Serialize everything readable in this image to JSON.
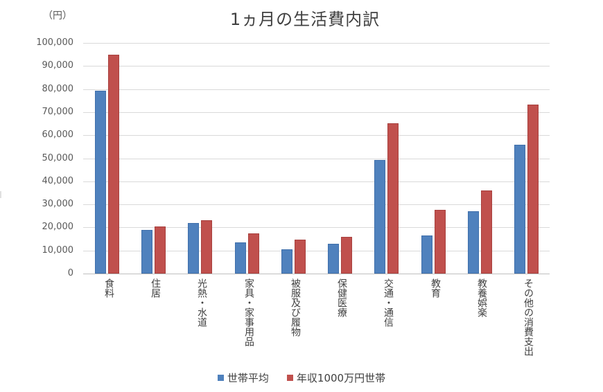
{
  "chart": {
    "title": "1ヵ月の生活費内訳",
    "unit_label": "（円）"
  },
  "colors": {
    "series_0": "#4f81bd",
    "series_1": "#c0504d",
    "gridline": "#d9d9d9"
  },
  "legend": {
    "items": [
      {
        "label": "世帯平均",
        "color": "#4f81bd"
      },
      {
        "label": "年収1000万円世帯",
        "color": "#c0504d"
      }
    ]
  },
  "y_ticks": [
    "0",
    "10,000",
    "20,000",
    "30,000",
    "40,000",
    "50,000",
    "60,000",
    "70,000",
    "80,000",
    "90,000",
    "100,000"
  ],
  "chart_data": {
    "type": "bar",
    "title": "1ヵ月の生活費内訳",
    "xlabel": "",
    "ylabel": "（円）",
    "ylim": [
      0,
      100000
    ],
    "yticks": [
      0,
      10000,
      20000,
      30000,
      40000,
      50000,
      60000,
      70000,
      80000,
      90000,
      100000
    ],
    "grid": true,
    "legend_position": "bottom",
    "categories": [
      "食料",
      "住居",
      "光熱・水道",
      "家具・家事用品",
      "被服及び履物",
      "保健医療",
      "交通・通信",
      "教育",
      "教養娯楽",
      "その他の消費支出"
    ],
    "series": [
      {
        "name": "世帯平均",
        "color": "#4f81bd",
        "values": [
          79300,
          18900,
          21900,
          13500,
          10500,
          13000,
          49300,
          16500,
          27000,
          55900
        ]
      },
      {
        "name": "年収1000万円世帯",
        "color": "#c0504d",
        "values": [
          94900,
          20400,
          23100,
          17400,
          14700,
          15900,
          65200,
          27600,
          36000,
          73300
        ]
      }
    ]
  }
}
